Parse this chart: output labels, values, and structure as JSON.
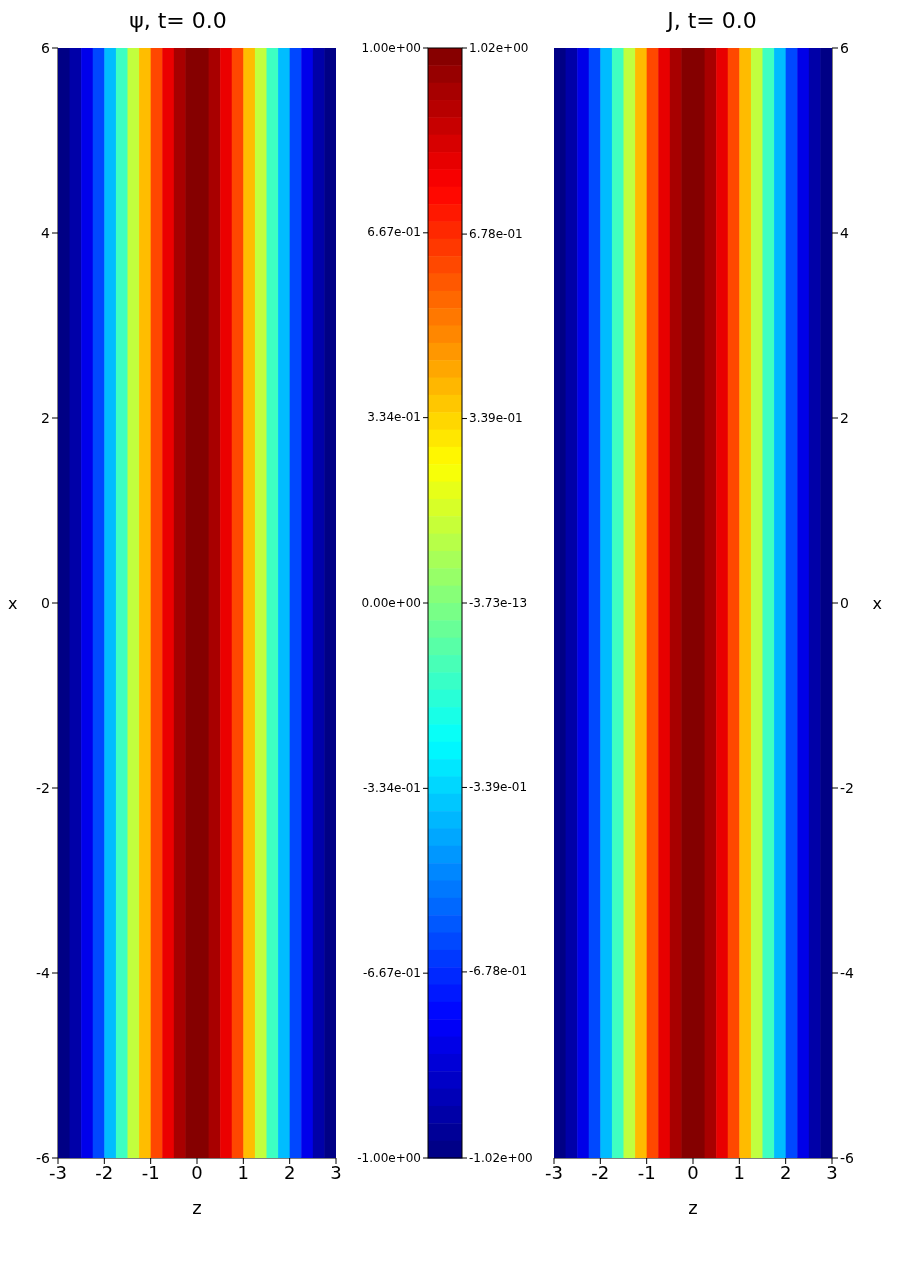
{
  "chart_data": [
    {
      "type": "heatmap",
      "title": "ψ, t= 0.0",
      "xlabel": "z",
      "ylabel": "x",
      "x": [
        -2.875,
        -2.625,
        -2.375,
        -2.125,
        -1.875,
        -1.625,
        -1.375,
        -1.125,
        -0.875,
        -0.625,
        -0.375,
        -0.125,
        0.125,
        0.375,
        0.625,
        0.875,
        1.125,
        1.375,
        1.625,
        1.875,
        2.125,
        2.375,
        2.625,
        2.875
      ],
      "cells": [
        [
          -0.99,
          -0.92,
          -0.79,
          -0.61,
          -0.38,
          -0.13,
          0.13,
          0.38,
          0.61,
          0.79,
          0.92,
          0.99,
          0.99,
          0.92,
          0.79,
          0.61,
          0.38,
          0.13,
          -0.13,
          -0.38,
          -0.61,
          -0.79,
          -0.92,
          -0.99
        ]
      ],
      "xlim": [
        -3,
        3
      ],
      "xticks": [
        -3,
        -2,
        -1,
        0,
        1,
        2,
        3
      ],
      "ylim": [
        -6,
        6
      ],
      "yticks": [
        -6,
        -4,
        -2,
        0,
        2,
        4,
        6
      ],
      "clim": [
        -1,
        1
      ],
      "cticks": [
        {
          "value": 1,
          "label": "1.00e+00"
        },
        {
          "value": 0.667,
          "label": "6.67e-01"
        },
        {
          "value": 0.334,
          "label": "3.34e-01"
        },
        {
          "value": 0,
          "label": "0.00e+00"
        },
        {
          "value": -0.334,
          "label": "-3.34e-01"
        },
        {
          "value": -0.667,
          "label": "-6.67e-01"
        },
        {
          "value": -1,
          "label": "-1.00e+00"
        }
      ]
    },
    {
      "type": "heatmap",
      "title": "J, t= 0.0",
      "xlabel": "z",
      "ylabel": "x",
      "x": [
        -2.875,
        -2.625,
        -2.375,
        -2.125,
        -1.875,
        -1.625,
        -1.375,
        -1.125,
        -0.875,
        -0.625,
        -0.375,
        -0.125,
        0.125,
        0.375,
        0.625,
        0.875,
        1.125,
        1.375,
        1.625,
        1.875,
        2.125,
        2.375,
        2.625,
        2.875
      ],
      "cells": [
        [
          -1.01,
          -0.94,
          -0.81,
          -0.62,
          -0.39,
          -0.13,
          0.13,
          0.39,
          0.62,
          0.81,
          0.94,
          1.01,
          1.01,
          0.94,
          0.81,
          0.62,
          0.39,
          0.13,
          -0.13,
          -0.39,
          -0.62,
          -0.81,
          -0.94,
          -1.01
        ]
      ],
      "xlim": [
        -3,
        3
      ],
      "xticks": [
        -3,
        -2,
        -1,
        0,
        1,
        2,
        3
      ],
      "ylim": [
        -6,
        6
      ],
      "yticks": [
        -6,
        -4,
        -2,
        0,
        2,
        4,
        6
      ],
      "clim": [
        -1.02,
        1.02
      ],
      "cticks": [
        {
          "value": 1.02,
          "label": "1.02e+00"
        },
        {
          "value": 0.678,
          "label": "6.78e-01"
        },
        {
          "value": 0.339,
          "label": "3.39e-01"
        },
        {
          "value": 0,
          "label": "-3.73e-13"
        },
        {
          "value": -0.339,
          "label": "-3.39e-01"
        },
        {
          "value": -0.678,
          "label": "-6.78e-01"
        },
        {
          "value": -1.02,
          "label": "-1.02e+00"
        }
      ]
    }
  ]
}
